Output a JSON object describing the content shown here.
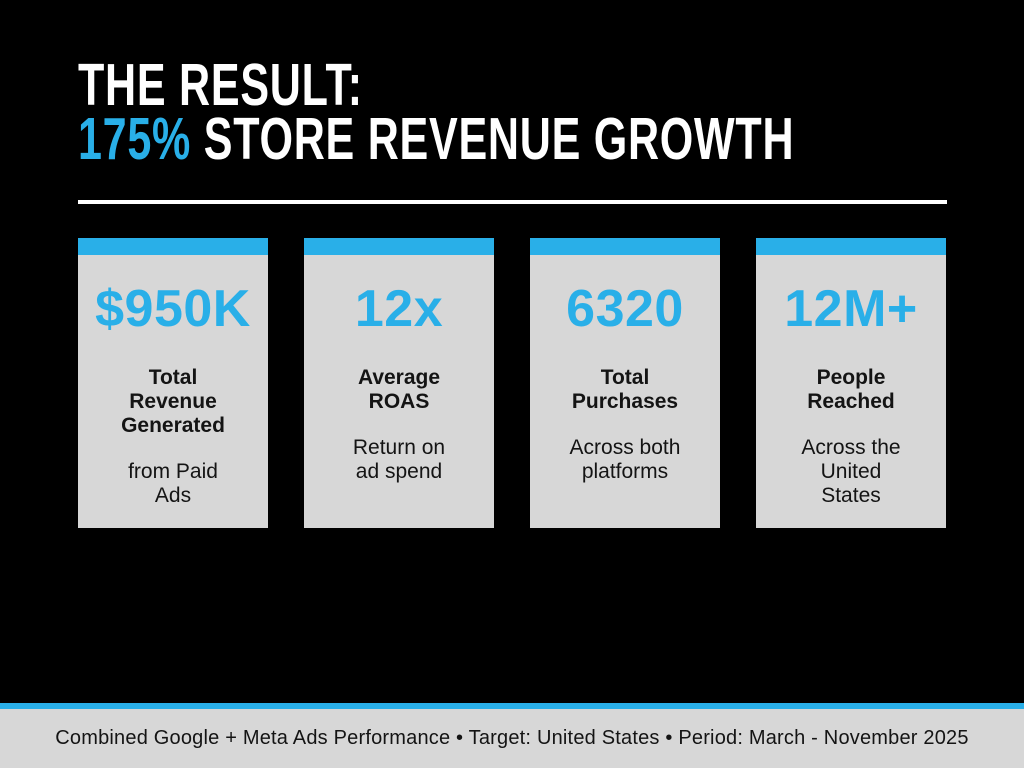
{
  "slide": {
    "colors": {
      "background": "#000000",
      "accent_blue": "#29AFE8",
      "card_bg": "#D7D7D7",
      "text_dark": "#141414",
      "white": "#FFFFFF"
    },
    "title": {
      "line1": "THE RESULT:",
      "highlight": "175%",
      "line2_rest": " STORE REVENUE GROWTH"
    },
    "stats": [
      {
        "value": "$950K",
        "label": "Total\nRevenue\nGenerated",
        "sublabel": "from Paid\nAds"
      },
      {
        "value": "12x",
        "label": "Average\nROAS",
        "sublabel": "Return on\nad spend"
      },
      {
        "value": "6320",
        "label": "Total\nPurchases",
        "sublabel": "Across both\nplatforms"
      },
      {
        "value": "12M+",
        "label": "People\nReached",
        "sublabel": "Across the\nUnited\nStates"
      }
    ],
    "footer": {
      "text": "Combined Google + Meta Ads Performance • Target: United States • Period: March - November 2025"
    }
  }
}
